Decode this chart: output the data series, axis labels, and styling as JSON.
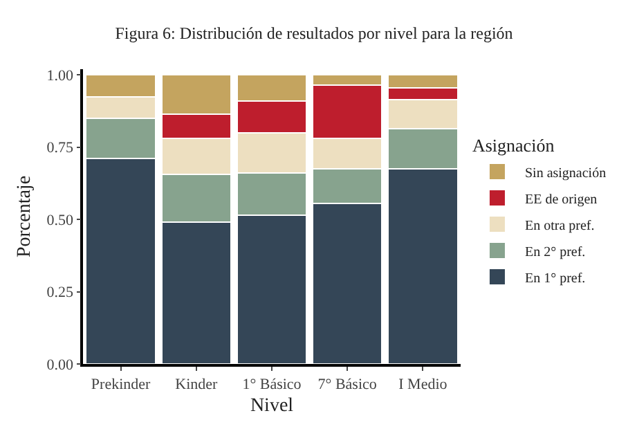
{
  "chart_data": {
    "type": "bar",
    "title": "Figura 6: Distribución de resultados por nivel para la región",
    "xlabel": "Nivel",
    "ylabel": "Porcentaje",
    "legend_title": "Asignación",
    "categories": [
      "Prekinder",
      "Kinder",
      "1° Básico",
      "7° Básico",
      "I Medio"
    ],
    "stacked": true,
    "ylim": [
      0,
      1.02
    ],
    "yticks": [
      {
        "value": 0,
        "label": "0.00"
      },
      {
        "value": 0.25,
        "label": "0.25"
      },
      {
        "value": 0.5,
        "label": "0.50"
      },
      {
        "value": 0.75,
        "label": "0.75"
      },
      {
        "value": 1,
        "label": "1.00"
      }
    ],
    "grid": false,
    "legend": "right",
    "series": [
      {
        "name": "En 1° pref.",
        "color": "#344657",
        "values": [
          0.71,
          0.49,
          0.515,
          0.555,
          0.675
        ]
      },
      {
        "name": "En 2° pref.",
        "color": "#87a38e",
        "values": [
          0.14,
          0.165,
          0.145,
          0.12,
          0.14
        ]
      },
      {
        "name": "En otra pref.",
        "color": "#eddfc0",
        "values": [
          0.075,
          0.125,
          0.14,
          0.105,
          0.1
        ]
      },
      {
        "name": "EE de origen",
        "color": "#be1e2d",
        "values": [
          0,
          0.085,
          0.11,
          0.185,
          0.04
        ]
      },
      {
        "name": "Sin asignación",
        "color": "#c4a45f",
        "values": [
          0.075,
          0.135,
          0.09,
          0.035,
          0.045
        ]
      }
    ]
  }
}
